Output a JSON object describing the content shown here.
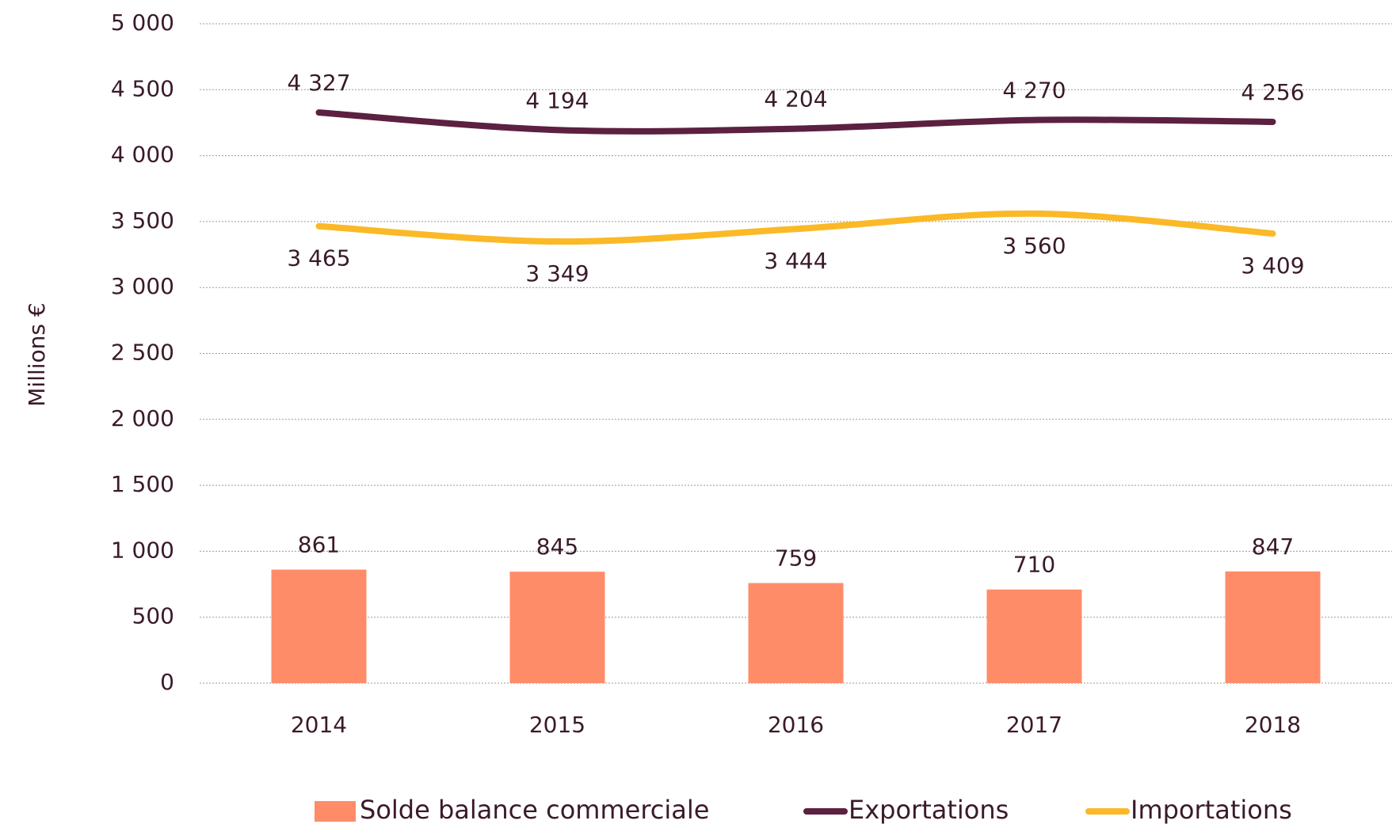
{
  "chart_data": {
    "type": "bar",
    "y_axis_label": "Millions €",
    "categories": [
      "2014",
      "2015",
      "2016",
      "2017",
      "2018"
    ],
    "series": [
      {
        "name": "Solde balance commerciale",
        "type": "bar",
        "color": "#ff8c69",
        "values": [
          861,
          845,
          759,
          710,
          847
        ],
        "value_labels": [
          "861",
          "845",
          "759",
          "710",
          "847"
        ]
      },
      {
        "name": "Exportations",
        "type": "line",
        "color": "#5c2040",
        "values": [
          4327,
          4194,
          4204,
          4270,
          4256
        ],
        "value_labels": [
          "4 327",
          "4 194",
          "4 204",
          "4 270",
          "4 256"
        ]
      },
      {
        "name": "Importations",
        "type": "line",
        "color": "#fbb927",
        "values": [
          3465,
          3349,
          3444,
          3560,
          3409
        ],
        "value_labels": [
          "3 465",
          "3 349",
          "3 444",
          "3 560",
          "3 409"
        ]
      }
    ],
    "ylim": [
      0,
      5000
    ],
    "yticks": [
      0,
      {
        "value": 500,
        "label": "500"
      },
      {
        "value": 1000,
        "label": "1 000"
      },
      {
        "value": 1500,
        "label": "1 500"
      },
      {
        "value": 2000,
        "label": "2 000"
      },
      {
        "value": 2500,
        "label": "2 500"
      },
      {
        "value": 3000,
        "label": "3 000"
      },
      {
        "value": 3500,
        "label": "3 500"
      },
      {
        "value": 4000,
        "label": "4 000"
      },
      {
        "value": 4500,
        "label": "4 500"
      },
      {
        "value": 5000,
        "label": "5 000"
      }
    ],
    "grid": true
  }
}
